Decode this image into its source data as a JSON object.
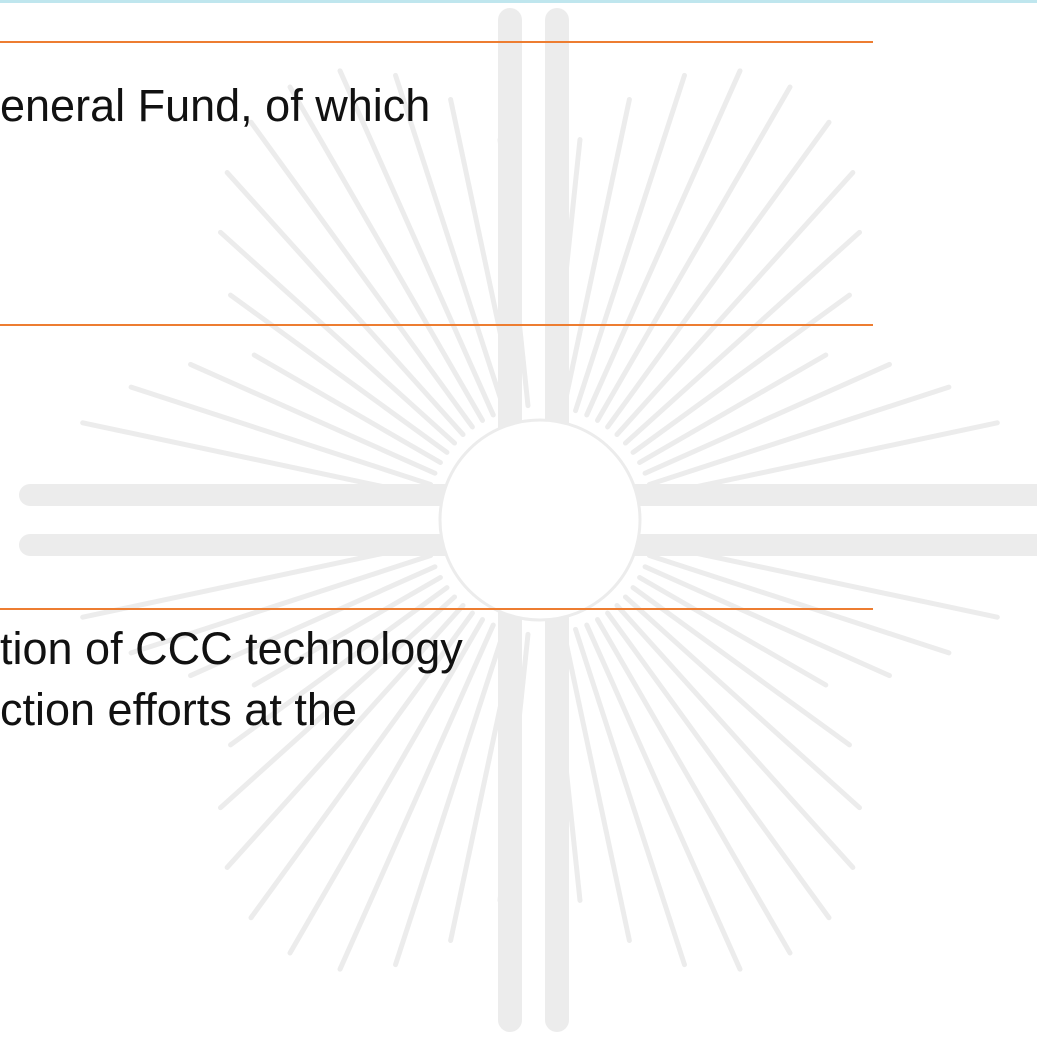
{
  "slide": {
    "paragraphs": [
      "eneral Fund, of which",
      "tion of CCC technology",
      "ction efforts at the"
    ]
  }
}
